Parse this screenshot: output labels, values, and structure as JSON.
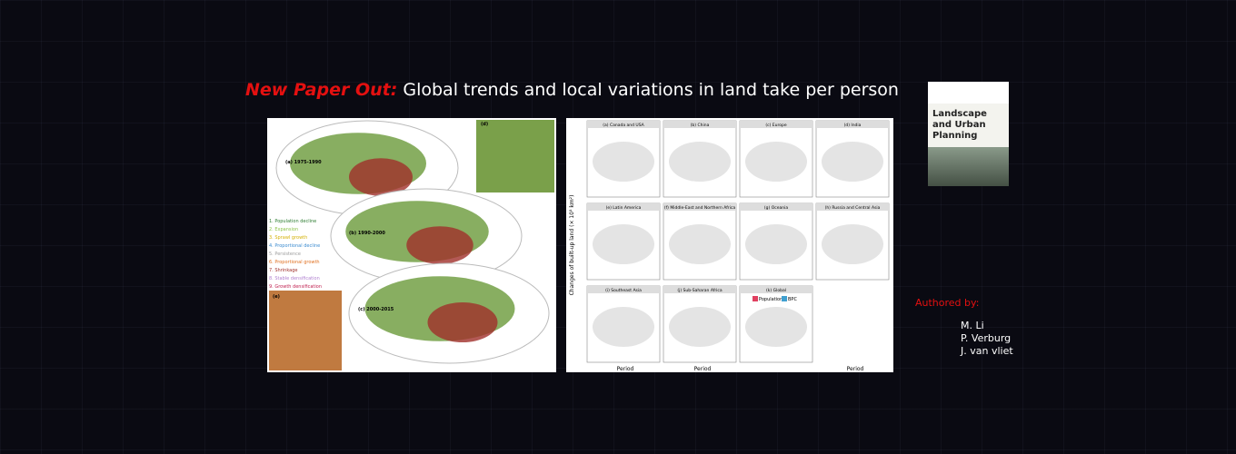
{
  "banner": {
    "title_prefix": "New Paper Out:",
    "title": "Global trends and local variations in land take per person",
    "map_figure": {
      "panels": [
        "(a) 1975-1990",
        "(b) 1990-2000",
        "(c) 2000-2015",
        "(d)",
        "(e)"
      ],
      "legend": [
        "1. Population decline",
        "2. Expansion",
        "3. Sprawl growth",
        "4. Proportional decline",
        "5. Persistence",
        "6. Proportional growth",
        "7. Shrinkage",
        "8. Stable densification",
        "9. Growth densification"
      ]
    },
    "bar_figure": {
      "panels": [
        "(a) Canada and USA",
        "(b) China",
        "(c) Europe",
        "(d) India",
        "(e) Latin America",
        "(f) Middle-East and Northern Africa",
        "(g) Oceania",
        "(h) Russia and Central Asia",
        "(i) Southeast Asia",
        "(j) Sub-Saharan Africa",
        "(k) Global"
      ],
      "y_label": "Changes of built-up land (× 10³ km²)",
      "x_label": "Period",
      "legend": [
        "Population",
        "BPC"
      ]
    },
    "journal": "Landscape and Urban Planning",
    "authored_by": "Authored by:",
    "authors": [
      "M. Li",
      "P. Verburg",
      "J. van vliet"
    ]
  }
}
